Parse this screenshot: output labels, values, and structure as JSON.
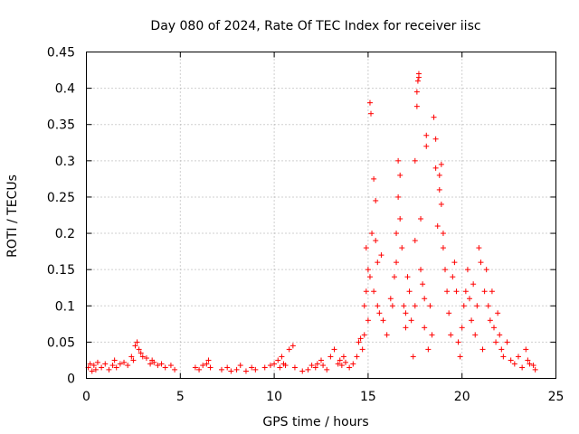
{
  "chart_data": {
    "type": "scatter",
    "title": "Day 080 of 2024, Rate Of TEC Index for receiver iisc",
    "xlabel": "GPS time / hours",
    "ylabel": "ROTI / TECUs",
    "xlim": [
      0,
      25
    ],
    "ylim": [
      0,
      0.45
    ],
    "x_ticks": [
      0,
      5,
      10,
      15,
      20,
      25
    ],
    "x_tick_labels": [
      "0",
      "5",
      "10",
      "15",
      "20",
      "25"
    ],
    "y_ticks": [
      0,
      0.05,
      0.1,
      0.15,
      0.2,
      0.25,
      0.3,
      0.35,
      0.4,
      0.45
    ],
    "y_tick_labels": [
      "0",
      "0.05",
      "0.1",
      "0.15",
      "0.2",
      "0.25",
      "0.3",
      "0.35",
      "0.4",
      "0.45"
    ],
    "grid": true,
    "marker": "+",
    "color": "#ff0000",
    "series": [
      {
        "name": "ROTI",
        "points": [
          [
            0.1,
            0.015
          ],
          [
            0.2,
            0.02
          ],
          [
            0.3,
            0.01
          ],
          [
            0.4,
            0.018
          ],
          [
            0.5,
            0.012
          ],
          [
            0.6,
            0.022
          ],
          [
            0.8,
            0.015
          ],
          [
            1.0,
            0.02
          ],
          [
            1.2,
            0.012
          ],
          [
            1.4,
            0.018
          ],
          [
            1.5,
            0.025
          ],
          [
            1.6,
            0.015
          ],
          [
            1.8,
            0.02
          ],
          [
            2.0,
            0.022
          ],
          [
            2.2,
            0.018
          ],
          [
            2.4,
            0.03
          ],
          [
            2.5,
            0.025
          ],
          [
            2.6,
            0.045
          ],
          [
            2.7,
            0.05
          ],
          [
            2.8,
            0.04
          ],
          [
            2.9,
            0.035
          ],
          [
            3.0,
            0.03
          ],
          [
            3.2,
            0.028
          ],
          [
            3.4,
            0.02
          ],
          [
            3.5,
            0.025
          ],
          [
            3.6,
            0.022
          ],
          [
            3.8,
            0.018
          ],
          [
            4.0,
            0.02
          ],
          [
            4.2,
            0.015
          ],
          [
            4.5,
            0.018
          ],
          [
            4.7,
            0.012
          ],
          [
            5.8,
            0.015
          ],
          [
            6.0,
            0.012
          ],
          [
            6.2,
            0.018
          ],
          [
            6.4,
            0.02
          ],
          [
            6.5,
            0.025
          ],
          [
            6.6,
            0.015
          ],
          [
            7.2,
            0.012
          ],
          [
            7.5,
            0.015
          ],
          [
            7.7,
            0.01
          ],
          [
            8.0,
            0.012
          ],
          [
            8.2,
            0.018
          ],
          [
            8.5,
            0.01
          ],
          [
            8.8,
            0.015
          ],
          [
            9.0,
            0.012
          ],
          [
            9.5,
            0.015
          ],
          [
            9.8,
            0.018
          ],
          [
            10.0,
            0.02
          ],
          [
            10.2,
            0.025
          ],
          [
            10.3,
            0.015
          ],
          [
            10.4,
            0.03
          ],
          [
            10.5,
            0.02
          ],
          [
            10.6,
            0.018
          ],
          [
            10.8,
            0.04
          ],
          [
            11.0,
            0.045
          ],
          [
            11.1,
            0.015
          ],
          [
            11.5,
            0.01
          ],
          [
            11.8,
            0.012
          ],
          [
            12.0,
            0.018
          ],
          [
            12.2,
            0.015
          ],
          [
            12.3,
            0.02
          ],
          [
            12.5,
            0.025
          ],
          [
            12.6,
            0.018
          ],
          [
            12.8,
            0.012
          ],
          [
            13.0,
            0.03
          ],
          [
            13.2,
            0.04
          ],
          [
            13.4,
            0.02
          ],
          [
            13.5,
            0.025
          ],
          [
            13.6,
            0.018
          ],
          [
            13.7,
            0.03
          ],
          [
            13.8,
            0.022
          ],
          [
            14.0,
            0.015
          ],
          [
            14.2,
            0.02
          ],
          [
            14.4,
            0.03
          ],
          [
            14.5,
            0.05
          ],
          [
            14.6,
            0.055
          ],
          [
            14.7,
            0.04
          ],
          [
            14.8,
            0.06
          ],
          [
            14.9,
            0.12
          ],
          [
            15.0,
            0.15
          ],
          [
            14.8,
            0.1
          ],
          [
            14.9,
            0.18
          ],
          [
            15.0,
            0.08
          ],
          [
            15.1,
            0.14
          ],
          [
            15.1,
            0.38
          ],
          [
            15.15,
            0.365
          ],
          [
            15.2,
            0.2
          ],
          [
            15.3,
            0.12
          ],
          [
            15.3,
            0.275
          ],
          [
            15.4,
            0.245
          ],
          [
            15.4,
            0.19
          ],
          [
            15.5,
            0.16
          ],
          [
            15.5,
            0.1
          ],
          [
            15.6,
            0.09
          ],
          [
            15.7,
            0.17
          ],
          [
            15.8,
            0.08
          ],
          [
            16.0,
            0.06
          ],
          [
            16.2,
            0.11
          ],
          [
            16.3,
            0.1
          ],
          [
            16.4,
            0.14
          ],
          [
            16.5,
            0.16
          ],
          [
            16.5,
            0.2
          ],
          [
            16.6,
            0.25
          ],
          [
            16.6,
            0.3
          ],
          [
            16.7,
            0.22
          ],
          [
            16.7,
            0.28
          ],
          [
            16.8,
            0.18
          ],
          [
            16.9,
            0.1
          ],
          [
            17.0,
            0.09
          ],
          [
            17.0,
            0.07
          ],
          [
            17.1,
            0.14
          ],
          [
            17.2,
            0.12
          ],
          [
            17.3,
            0.08
          ],
          [
            17.4,
            0.03
          ],
          [
            17.5,
            0.1
          ],
          [
            17.5,
            0.19
          ],
          [
            17.5,
            0.3
          ],
          [
            17.6,
            0.375
          ],
          [
            17.6,
            0.395
          ],
          [
            17.65,
            0.41
          ],
          [
            17.7,
            0.42
          ],
          [
            17.7,
            0.415
          ],
          [
            17.8,
            0.22
          ],
          [
            17.8,
            0.15
          ],
          [
            17.9,
            0.13
          ],
          [
            18.0,
            0.11
          ],
          [
            18.0,
            0.07
          ],
          [
            18.1,
            0.32
          ],
          [
            18.1,
            0.335
          ],
          [
            18.2,
            0.04
          ],
          [
            18.3,
            0.1
          ],
          [
            18.4,
            0.06
          ],
          [
            18.5,
            0.36
          ],
          [
            18.6,
            0.33
          ],
          [
            18.6,
            0.29
          ],
          [
            18.7,
            0.21
          ],
          [
            18.8,
            0.28
          ],
          [
            18.8,
            0.26
          ],
          [
            18.9,
            0.295
          ],
          [
            18.9,
            0.24
          ],
          [
            19.0,
            0.2
          ],
          [
            19.0,
            0.18
          ],
          [
            19.1,
            0.15
          ],
          [
            19.2,
            0.12
          ],
          [
            19.3,
            0.09
          ],
          [
            19.4,
            0.06
          ],
          [
            19.5,
            0.14
          ],
          [
            19.6,
            0.16
          ],
          [
            19.7,
            0.12
          ],
          [
            19.8,
            0.05
          ],
          [
            19.9,
            0.03
          ],
          [
            20.0,
            0.07
          ],
          [
            20.1,
            0.1
          ],
          [
            20.2,
            0.12
          ],
          [
            20.3,
            0.15
          ],
          [
            20.4,
            0.11
          ],
          [
            20.5,
            0.08
          ],
          [
            20.6,
            0.13
          ],
          [
            20.7,
            0.06
          ],
          [
            20.8,
            0.1
          ],
          [
            20.9,
            0.18
          ],
          [
            21.0,
            0.16
          ],
          [
            21.1,
            0.04
          ],
          [
            21.2,
            0.12
          ],
          [
            21.3,
            0.15
          ],
          [
            21.4,
            0.1
          ],
          [
            21.5,
            0.08
          ],
          [
            21.6,
            0.12
          ],
          [
            21.7,
            0.07
          ],
          [
            21.8,
            0.05
          ],
          [
            21.9,
            0.09
          ],
          [
            22.0,
            0.06
          ],
          [
            22.1,
            0.04
          ],
          [
            22.2,
            0.03
          ],
          [
            22.4,
            0.05
          ],
          [
            22.6,
            0.025
          ],
          [
            22.8,
            0.02
          ],
          [
            23.0,
            0.03
          ],
          [
            23.2,
            0.015
          ],
          [
            23.4,
            0.04
          ],
          [
            23.5,
            0.025
          ],
          [
            23.6,
            0.02
          ],
          [
            23.8,
            0.018
          ],
          [
            23.9,
            0.012
          ]
        ]
      }
    ]
  }
}
